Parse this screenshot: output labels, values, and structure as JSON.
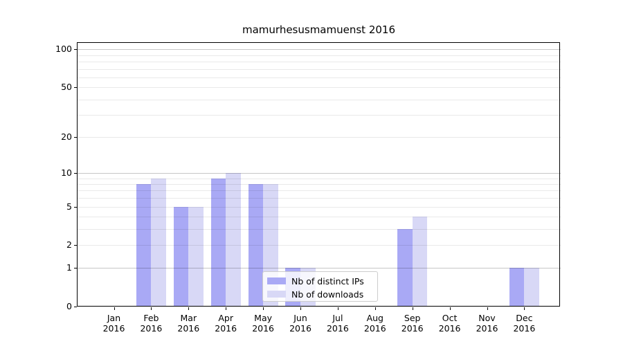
{
  "title": "mamurhesusmamuenst 2016",
  "chart_data": {
    "type": "bar",
    "title": "mamurhesusmamuenst 2016",
    "categories": [
      "Jan",
      "Feb",
      "Mar",
      "Apr",
      "May",
      "Jun",
      "Jul",
      "Aug",
      "Sep",
      "Oct",
      "Nov",
      "Dec"
    ],
    "x_year": "2016",
    "series": [
      {
        "name": "Nb of distinct IPs",
        "color": "#a9a9f5",
        "values": [
          0,
          8,
          5,
          9,
          8,
          1,
          0,
          0,
          3,
          0,
          0,
          1
        ]
      },
      {
        "name": "Nb of downloads",
        "color": "#d8d8f6",
        "values": [
          0,
          9,
          5,
          10,
          8,
          1,
          0,
          0,
          4,
          0,
          0,
          1
        ]
      }
    ],
    "yscale": "log1p",
    "ylim": [
      0,
      113
    ],
    "ytick_values": [
      0,
      1,
      2,
      5,
      10,
      20,
      50,
      100
    ],
    "grid": {
      "major_values": [
        1,
        10,
        100
      ],
      "minor_values": [
        2,
        3,
        4,
        5,
        6,
        7,
        8,
        9,
        20,
        30,
        40,
        50,
        60,
        70,
        80,
        90
      ],
      "major_color": "rgba(0,0,0,0.22)",
      "minor_color": "rgba(0,0,0,0.085)"
    },
    "legend_position": "lower center",
    "background_color": "#ffffff",
    "spine_color": "#000000"
  }
}
